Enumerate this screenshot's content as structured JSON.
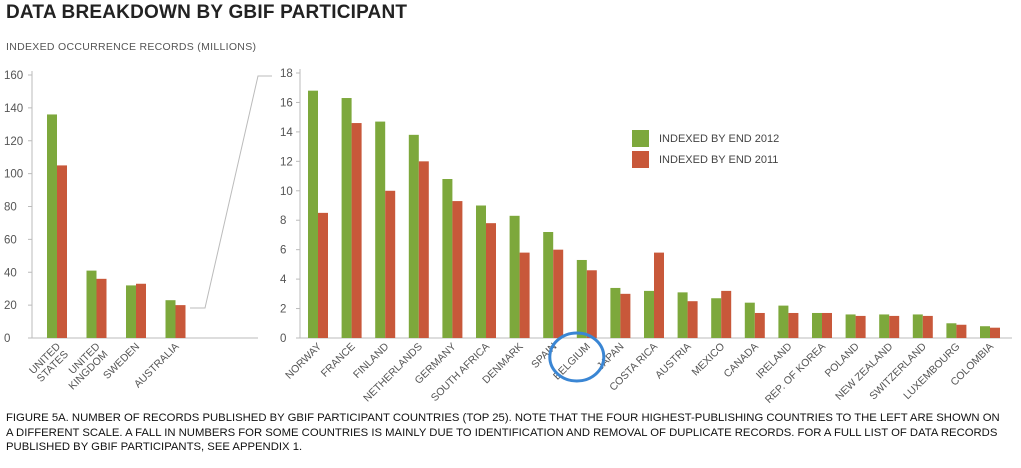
{
  "page": {
    "title": "DATA BREAKDOWN BY GBIF PARTICIPANT",
    "caption": "FIGURE 5A. NUMBER OF RECORDS PUBLISHED BY GBIF PARTICIPANT COUNTRIES (TOP 25). NOTE THAT THE FOUR HIGHEST-PUBLISHING COUNTRIES TO THE LEFT ARE SHOWN ON A DIFFERENT SCALE. A FALL IN NUMBERS FOR SOME COUNTRIES IS MAINLY DUE TO IDENTIFICATION AND REMOVAL OF DUPLICATE RECORDS. FOR A FULL LIST OF DATA RECORDS PUBLISHED BY GBIF PARTICIPANTS, SEE APPENDIX 1."
  },
  "colors": {
    "end2012": "#7da83c",
    "end2011": "#c8583a",
    "axis": "#bbbbbb",
    "highlight": "#3a86d4"
  },
  "highlight": {
    "category": "BELGIUM",
    "shape": "circle"
  },
  "chart_data": [
    {
      "type": "bar",
      "ylabel": "INDEXED OCCURRENCE RECORDS (MILLIONS)",
      "ylim": [
        0,
        160
      ],
      "yticks": [
        0,
        20,
        40,
        60,
        80,
        100,
        120,
        140,
        160
      ],
      "categories": [
        "UNITED STATES",
        "UNITED KINGDOM",
        "SWEDEN",
        "AUSTRALIA"
      ],
      "series": [
        {
          "name": "INDEXED BY END 2012",
          "values": [
            136,
            41,
            32,
            23
          ]
        },
        {
          "name": "INDEXED BY END 2011",
          "values": [
            105,
            36,
            33,
            20
          ]
        }
      ],
      "grid": false
    },
    {
      "type": "bar",
      "ylim": [
        0,
        18
      ],
      "yticks": [
        0,
        2,
        4,
        6,
        8,
        10,
        12,
        14,
        16,
        18
      ],
      "categories": [
        "NORWAY",
        "FRANCE",
        "FINLAND",
        "NETHERLANDS",
        "GERMANY",
        "SOUTH AFRICA",
        "DENMARK",
        "SPAIN",
        "BELGIUM",
        "JAPAN",
        "COSTA RICA",
        "AUSTRIA",
        "MEXICO",
        "CANADA",
        "IRELAND",
        "REP. OF KOREA",
        "POLAND",
        "NEW ZEALAND",
        "SWITZERLAND",
        "LUXEMBOURG",
        "COLOMBIA"
      ],
      "series": [
        {
          "name": "INDEXED BY END 2012",
          "values": [
            16.8,
            16.3,
            14.7,
            13.8,
            10.8,
            9.0,
            8.3,
            7.2,
            5.3,
            3.4,
            3.2,
            3.1,
            2.7,
            2.4,
            2.2,
            1.7,
            1.6,
            1.6,
            1.6,
            1.0,
            0.8
          ]
        },
        {
          "name": "INDEXED BY END 2011",
          "values": [
            8.5,
            14.6,
            10.0,
            12.0,
            9.3,
            7.8,
            5.8,
            6.0,
            4.6,
            3.0,
            5.8,
            2.5,
            3.2,
            1.7,
            1.7,
            1.7,
            1.5,
            1.5,
            1.5,
            0.9,
            0.7
          ]
        }
      ],
      "legend": {
        "placement": "top-right",
        "entries": [
          "INDEXED BY END 2012",
          "INDEXED BY END 2011"
        ]
      },
      "grid": false
    }
  ]
}
